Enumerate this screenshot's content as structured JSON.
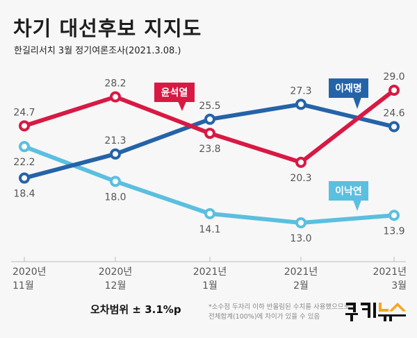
{
  "header": {
    "title": "차기 대선후보 지지도",
    "subtitle": "한길리서치 3월 정기여론조사(2021.3.08.)"
  },
  "footer": {
    "margin_of_error": "오차범위 ± 3.1%p",
    "note_line1": "*소수점 두자리 이하 반올림된 수치를 사용했으므로",
    "note_line2": "전체합계(100%)에 차이가 있을 수 있음",
    "logo": "쿠키뉴스",
    "logo_colors": {
      "dark": "#111111",
      "accent": "#f5a623"
    }
  },
  "chart_data": {
    "type": "line",
    "title": "차기 대선후보 지지도",
    "xlabel": "",
    "ylabel": "",
    "grid": false,
    "categories": [
      [
        "2020년",
        "11월"
      ],
      [
        "2020년",
        "12월"
      ],
      [
        "2021년",
        "1월"
      ],
      [
        "2021년",
        "2월"
      ],
      [
        "2021년",
        "3월"
      ]
    ],
    "series": [
      {
        "name": "윤석열",
        "color": "#d81943",
        "values": [
          24.7,
          28.2,
          23.8,
          20.3,
          29.0
        ],
        "label_pos": [
          "above",
          "above",
          "below",
          "below",
          "above"
        ]
      },
      {
        "name": "이재명",
        "color": "#2563a8",
        "values": [
          18.4,
          21.3,
          25.5,
          27.3,
          24.6
        ],
        "label_pos": [
          "below",
          "above",
          "above",
          "above",
          "above"
        ]
      },
      {
        "name": "이낙연",
        "color": "#5bbfdf",
        "values": [
          22.2,
          18.0,
          14.1,
          13.0,
          13.9
        ],
        "label_pos": [
          "below",
          "below",
          "below",
          "below",
          "below"
        ]
      }
    ],
    "legend": "callouts on lines"
  }
}
